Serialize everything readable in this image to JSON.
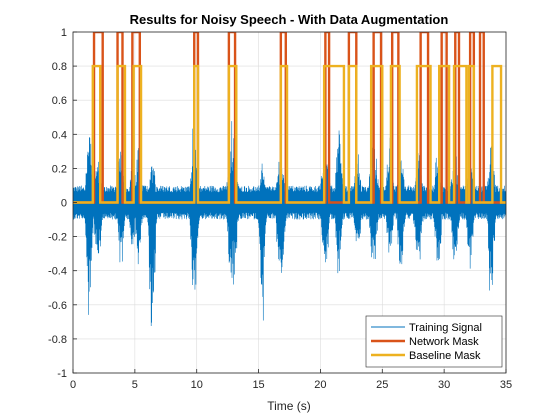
{
  "chart_data": {
    "type": "line",
    "title": "Results for Noisy Speech - With Data Augmentation",
    "xlabel": "Time (s)",
    "ylabel": "",
    "xlim": [
      0,
      35
    ],
    "ylim": [
      -1,
      1
    ],
    "xticks": [
      "0",
      "5",
      "10",
      "15",
      "20",
      "25",
      "30",
      "35"
    ],
    "yticks": [
      "-1",
      "-0.8",
      "-0.6",
      "-0.4",
      "-0.2",
      "0",
      "0.2",
      "0.4",
      "0.6",
      "0.8",
      "1"
    ],
    "grid": true,
    "legend_position": "bottom-right",
    "series": [
      {
        "name": "Training Signal",
        "color": "#0072BD",
        "noise_amplitude": 0.1,
        "bursts": [
          {
            "x": 1.3,
            "w": 0.5,
            "pos": 0.46,
            "neg": -0.74
          },
          {
            "x": 2.0,
            "w": 0.6,
            "pos": 0.3,
            "neg": -0.45
          },
          {
            "x": 3.9,
            "w": 0.5,
            "pos": 0.44,
            "neg": -0.5
          },
          {
            "x": 4.8,
            "w": 0.5,
            "pos": 0.3,
            "neg": -0.35
          },
          {
            "x": 5.3,
            "w": 0.4,
            "pos": 0.4,
            "neg": -0.55
          },
          {
            "x": 6.4,
            "w": 0.5,
            "pos": 0.3,
            "neg": -0.92
          },
          {
            "x": 9.8,
            "w": 0.6,
            "pos": 0.5,
            "neg": -0.62
          },
          {
            "x": 12.9,
            "w": 0.7,
            "pos": 0.51,
            "neg": -0.62
          },
          {
            "x": 15.3,
            "w": 0.4,
            "pos": 0.3,
            "neg": -0.92
          },
          {
            "x": 16.8,
            "w": 0.6,
            "pos": 0.35,
            "neg": -0.62
          },
          {
            "x": 20.4,
            "w": 0.6,
            "pos": 0.51,
            "neg": -0.5
          },
          {
            "x": 21.5,
            "w": 0.5,
            "pos": 0.55,
            "neg": -0.5
          },
          {
            "x": 23.0,
            "w": 0.5,
            "pos": 0.4,
            "neg": -0.4
          },
          {
            "x": 24.3,
            "w": 0.6,
            "pos": 0.46,
            "neg": -0.45
          },
          {
            "x": 25.6,
            "w": 0.5,
            "pos": 0.45,
            "neg": -0.4
          },
          {
            "x": 26.5,
            "w": 0.5,
            "pos": 0.4,
            "neg": -0.5
          },
          {
            "x": 27.9,
            "w": 0.6,
            "pos": 0.35,
            "neg": -0.45
          },
          {
            "x": 29.5,
            "w": 0.5,
            "pos": 0.38,
            "neg": -0.5
          },
          {
            "x": 30.9,
            "w": 0.6,
            "pos": 0.35,
            "neg": -0.45
          },
          {
            "x": 32.1,
            "w": 0.5,
            "pos": 0.35,
            "neg": -0.5
          },
          {
            "x": 33.8,
            "w": 0.5,
            "pos": 0.48,
            "neg": -0.7
          }
        ]
      },
      {
        "name": "Network Mask",
        "color": "#D95319",
        "high": 1,
        "low": 0,
        "segments": [
          [
            1.7,
            2.4
          ],
          [
            3.6,
            4.0
          ],
          [
            4.8,
            5.4
          ],
          [
            9.8,
            10.1
          ],
          [
            12.6,
            13.1
          ],
          [
            16.8,
            17.2
          ],
          [
            20.4,
            20.7
          ],
          [
            22.3,
            22.9
          ],
          [
            24.3,
            24.9
          ],
          [
            25.8,
            26.3
          ],
          [
            28.1,
            28.7
          ],
          [
            29.8,
            30.2
          ],
          [
            30.9,
            31.2
          ],
          [
            32.1,
            32.4
          ],
          [
            32.9,
            33.2
          ]
        ]
      },
      {
        "name": "Baseline Mask",
        "color": "#EDB120",
        "high": 0.8,
        "low": 0,
        "segments": [
          [
            1.6,
            2.2
          ],
          [
            3.6,
            4.2
          ],
          [
            4.9,
            5.5
          ],
          [
            9.8,
            10.1
          ],
          [
            12.6,
            13.2
          ],
          [
            16.8,
            17.3
          ],
          [
            20.3,
            21.9
          ],
          [
            22.3,
            22.9
          ],
          [
            24.1,
            25.0
          ],
          [
            25.7,
            26.4
          ],
          [
            27.8,
            28.9
          ],
          [
            29.6,
            30.4
          ],
          [
            30.8,
            31.8
          ],
          [
            32.0,
            32.4
          ],
          [
            33.9,
            34.6
          ]
        ]
      }
    ]
  }
}
